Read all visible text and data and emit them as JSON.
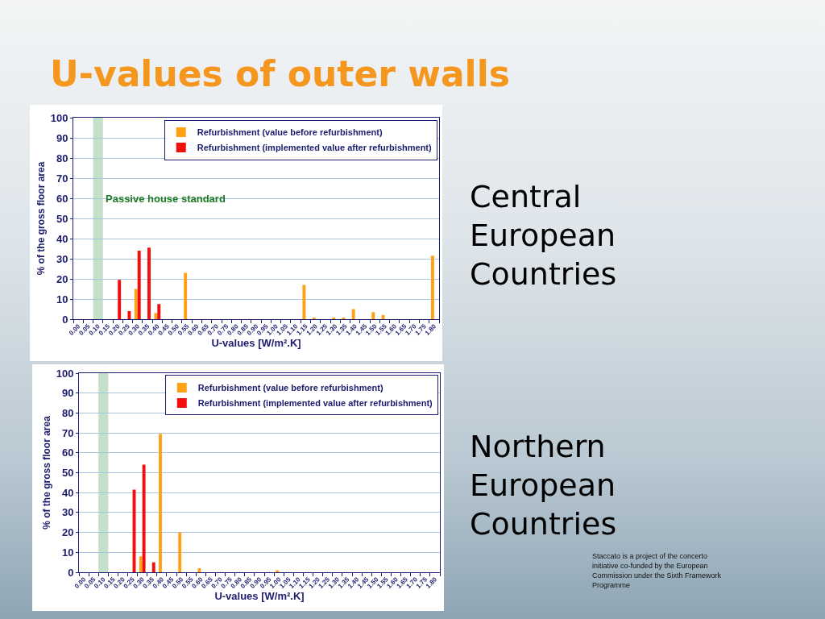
{
  "chart_data": [
    {
      "type": "bar",
      "title": "U-values of outer walls",
      "xlabel": "U-values [W/m².K]",
      "ylabel": "% of the gross floor area",
      "annotations": [
        "Central European Countries"
      ],
      "categories": [
        "0.00",
        "0.05",
        "0.10",
        "0.15",
        "0.20",
        "0.25",
        "0.30",
        "0.35",
        "0.40",
        "0.45",
        "0.50",
        "0.55",
        "0.60",
        "0.65",
        "0.70",
        "0.75",
        "0.80",
        "0.85",
        "0.90",
        "0.95",
        "1.00",
        "1.05",
        "1.10",
        "1.15",
        "1.20",
        "1.25",
        "1.30",
        "1.35",
        "1.40",
        "1.45",
        "1.50",
        "1.55",
        "1.60",
        "1.65",
        "1.70",
        "1.75",
        "1.80"
      ],
      "series": [
        {
          "name": "Refurbishment (value before refurbishment)",
          "color": "#ffa115",
          "values": [
            null,
            null,
            null,
            null,
            null,
            null,
            15,
            null,
            3,
            null,
            null,
            23,
            null,
            null,
            null,
            null,
            null,
            null,
            null,
            null,
            null,
            null,
            null,
            17,
            0.5,
            null,
            0.5,
            0.5,
            5,
            null,
            3.5,
            2,
            null,
            null,
            null,
            null,
            31.5
          ]
        },
        {
          "name": "Refurbishment (implemented value after refurbishment)",
          "color": "#f40d0d",
          "values": [
            null,
            null,
            null,
            null,
            19.5,
            4,
            34,
            35.5,
            7.5,
            null,
            null,
            null,
            null,
            null,
            null,
            null,
            null,
            null,
            null,
            null,
            null,
            null,
            null,
            null,
            null,
            null,
            null,
            null,
            null,
            null,
            null,
            null,
            null,
            null,
            null,
            null,
            null
          ]
        }
      ],
      "ylim": [
        0,
        100
      ],
      "yticks": [
        0,
        10,
        20,
        30,
        40,
        50,
        60,
        70,
        80,
        90,
        100
      ],
      "grid": "y",
      "legend": "top right",
      "bands": [
        {
          "axis": "x",
          "from": "0.10",
          "to": "0.10",
          "label": "Passive house standard",
          "color": "#c5e0c9"
        }
      ]
    },
    {
      "type": "bar",
      "xlabel": "U-values [W/m².K]",
      "ylabel": "% of the gross floor area",
      "annotations": [
        "Northern European Countries",
        "Staccato is a project of the concerto initiative co-funded by the European Commission under the Sixth Framework Programme"
      ],
      "categories": [
        "0.00",
        "0.05",
        "0.10",
        "0.15",
        "0.20",
        "0.25",
        "0.30",
        "0.35",
        "0.40",
        "0.45",
        "0.50",
        "0.55",
        "0.60",
        "0.65",
        "0.70",
        "0.75",
        "0.80",
        "0.85",
        "0.90",
        "0.95",
        "1.00",
        "1.05",
        "1.10",
        "1.15",
        "1.20",
        "1.25",
        "1.30",
        "1.35",
        "1.40",
        "1.45",
        "1.50",
        "1.55",
        "1.60",
        "1.65",
        "1.70",
        "1.75",
        "1.80"
      ],
      "series": [
        {
          "name": "Refurbishment (value before refurbishment)",
          "color": "#ffa115",
          "values": [
            null,
            null,
            null,
            null,
            null,
            null,
            8,
            null,
            69.5,
            null,
            20,
            null,
            2,
            null,
            null,
            null,
            null,
            null,
            null,
            null,
            1,
            null,
            null,
            null,
            null,
            null,
            null,
            null,
            null,
            null,
            null,
            null,
            null,
            null,
            null,
            null,
            null
          ]
        },
        {
          "name": "Refurbishment (implemented value after refurbishment)",
          "color": "#f40d0d",
          "values": [
            null,
            null,
            null,
            null,
            null,
            41.5,
            54,
            5,
            null,
            null,
            null,
            null,
            null,
            null,
            null,
            null,
            null,
            null,
            null,
            null,
            null,
            null,
            null,
            null,
            null,
            null,
            null,
            null,
            null,
            null,
            null,
            null,
            null,
            null,
            null,
            null,
            null
          ]
        }
      ],
      "ylim": [
        0,
        100
      ],
      "yticks": [
        0,
        10,
        20,
        30,
        40,
        50,
        60,
        70,
        80,
        90,
        100
      ],
      "grid": "y",
      "legend": "top right",
      "bands": [
        {
          "axis": "x",
          "from": "0.10",
          "to": "0.10",
          "color": "#c5e0c9"
        }
      ]
    }
  ]
}
